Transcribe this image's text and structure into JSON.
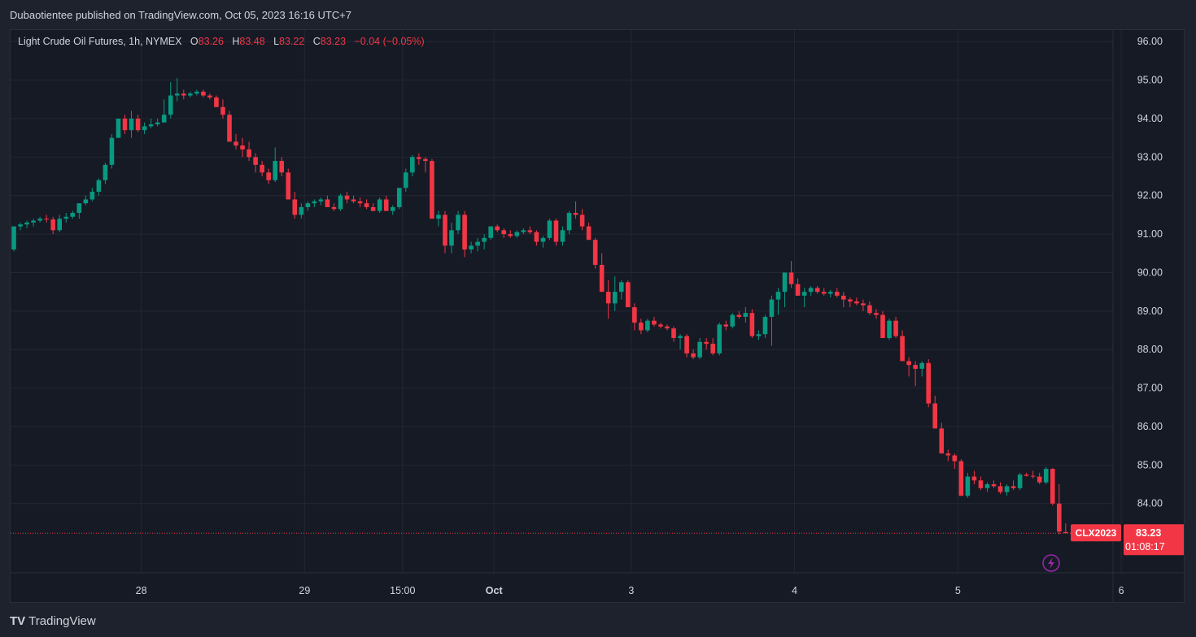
{
  "header": {
    "published": "Dubaotientee published on TradingView.com, Oct 05, 2023 16:16 UTC+7"
  },
  "legend": {
    "symbol": "Light Crude Oil Futures, 1h, NYMEX",
    "o_label": "O",
    "o_value": "83.26",
    "h_label": "H",
    "h_value": "83.48",
    "l_label": "L",
    "l_value": "83.22",
    "c_label": "C",
    "c_value": "83.23",
    "change": "−0.04 (−0.05%)"
  },
  "footer": {
    "logo": "TV",
    "brand": "TradingView"
  },
  "colors": {
    "up": "#089981",
    "down": "#f23645",
    "background": "#161a25",
    "grid": "#232734",
    "axis_text": "#d1d4dc"
  },
  "icons": {
    "flash": "lightning-icon"
  },
  "price_tag": {
    "symbol": "CLX2023",
    "price": "83.23",
    "countdown": "01:08:17"
  },
  "chart_data": {
    "type": "candlestick",
    "title": "Light Crude Oil Futures, 1h, NYMEX",
    "ylim": [
      82.2,
      96.3
    ],
    "y_ticks": [
      "96.00",
      "95.00",
      "94.00",
      "93.00",
      "92.00",
      "91.00",
      "90.00",
      "89.00",
      "88.00",
      "87.00",
      "86.00",
      "85.00",
      "84.00"
    ],
    "x_ticks": [
      {
        "label": "28",
        "index": 19.5
      },
      {
        "label": "29",
        "index": 44.5
      },
      {
        "label": "15:00",
        "index": 59.5
      },
      {
        "label": "Oct",
        "index": 73.5
      },
      {
        "label": "3",
        "index": 94.5
      },
      {
        "label": "4",
        "index": 119.5
      },
      {
        "label": "5",
        "index": 144.5
      },
      {
        "label": "6",
        "index": 169.5
      }
    ],
    "last_price": 83.23,
    "grid": true,
    "candles": [
      [
        90.6,
        91.2,
        90.55,
        91.2
      ],
      [
        91.2,
        91.3,
        91.1,
        91.25
      ],
      [
        91.25,
        91.35,
        91.15,
        91.3
      ],
      [
        91.3,
        91.4,
        91.2,
        91.35
      ],
      [
        91.35,
        91.45,
        91.3,
        91.4
      ],
      [
        91.4,
        91.5,
        91.3,
        91.38
      ],
      [
        91.38,
        91.45,
        91.0,
        91.1
      ],
      [
        91.1,
        91.5,
        91.05,
        91.4
      ],
      [
        91.4,
        91.55,
        91.3,
        91.45
      ],
      [
        91.45,
        91.6,
        91.4,
        91.55
      ],
      [
        91.55,
        91.8,
        91.4,
        91.8
      ],
      [
        91.8,
        92.0,
        91.75,
        91.9
      ],
      [
        91.9,
        92.2,
        91.85,
        92.1
      ],
      [
        92.1,
        92.45,
        92.0,
        92.4
      ],
      [
        92.4,
        92.85,
        92.3,
        92.8
      ],
      [
        92.8,
        93.6,
        92.7,
        93.5
      ],
      [
        93.5,
        94.0,
        93.5,
        94.0
      ],
      [
        94.0,
        94.1,
        93.6,
        93.7
      ],
      [
        93.7,
        94.2,
        93.5,
        94.0
      ],
      [
        94.0,
        94.1,
        93.65,
        93.7
      ],
      [
        93.7,
        93.9,
        93.6,
        93.8
      ],
      [
        93.8,
        94.0,
        93.75,
        93.85
      ],
      [
        93.85,
        94.0,
        93.8,
        93.9
      ],
      [
        93.9,
        94.5,
        93.9,
        94.1
      ],
      [
        94.1,
        94.95,
        94.0,
        94.6
      ],
      [
        94.6,
        95.05,
        94.45,
        94.65
      ],
      [
        94.65,
        94.75,
        94.5,
        94.6
      ],
      [
        94.6,
        94.7,
        94.55,
        94.65
      ],
      [
        94.65,
        94.75,
        94.6,
        94.7
      ],
      [
        94.7,
        94.75,
        94.55,
        94.6
      ],
      [
        94.6,
        94.65,
        94.5,
        94.55
      ],
      [
        94.55,
        94.6,
        94.3,
        94.3
      ],
      [
        94.3,
        94.5,
        94.0,
        94.1
      ],
      [
        94.1,
        94.2,
        93.4,
        93.4
      ],
      [
        93.4,
        93.6,
        93.2,
        93.3
      ],
      [
        93.3,
        93.5,
        93.0,
        93.2
      ],
      [
        93.2,
        93.4,
        92.9,
        93.0
      ],
      [
        93.0,
        93.1,
        92.6,
        92.8
      ],
      [
        92.8,
        92.9,
        92.5,
        92.6
      ],
      [
        92.6,
        92.7,
        92.3,
        92.4
      ],
      [
        92.4,
        93.25,
        92.35,
        92.9
      ],
      [
        92.9,
        93.0,
        92.5,
        92.6
      ],
      [
        92.6,
        92.7,
        91.9,
        91.9
      ],
      [
        91.9,
        92.1,
        91.4,
        91.5
      ],
      [
        91.5,
        91.8,
        91.4,
        91.7
      ],
      [
        91.7,
        91.85,
        91.6,
        91.8
      ],
      [
        91.8,
        91.9,
        91.7,
        91.85
      ],
      [
        91.85,
        91.95,
        91.75,
        91.9
      ],
      [
        91.9,
        92.0,
        91.8,
        91.7
      ],
      [
        91.7,
        91.8,
        91.6,
        91.65
      ],
      [
        91.65,
        92.05,
        91.6,
        92.0
      ],
      [
        92.0,
        92.1,
        91.8,
        91.9
      ],
      [
        91.9,
        92.0,
        91.8,
        91.85
      ],
      [
        91.85,
        91.95,
        91.7,
        91.8
      ],
      [
        91.8,
        91.9,
        91.65,
        91.7
      ],
      [
        91.7,
        91.8,
        91.6,
        91.6
      ],
      [
        91.6,
        91.95,
        91.55,
        91.9
      ],
      [
        91.9,
        92.0,
        91.7,
        91.6
      ],
      [
        91.6,
        91.75,
        91.5,
        91.7
      ],
      [
        91.7,
        92.2,
        91.65,
        92.2
      ],
      [
        92.2,
        92.7,
        92.1,
        92.6
      ],
      [
        92.6,
        93.05,
        92.5,
        93.0
      ],
      [
        93.0,
        93.1,
        92.8,
        92.95
      ],
      [
        92.95,
        93.0,
        92.6,
        92.9
      ],
      [
        92.9,
        92.95,
        91.4,
        91.4
      ],
      [
        91.4,
        91.6,
        91.2,
        91.5
      ],
      [
        91.5,
        91.6,
        90.5,
        90.7
      ],
      [
        90.7,
        91.3,
        90.5,
        91.1
      ],
      [
        91.1,
        91.6,
        91.0,
        91.5
      ],
      [
        91.5,
        91.6,
        90.4,
        90.6
      ],
      [
        90.6,
        90.8,
        90.5,
        90.7
      ],
      [
        90.7,
        90.9,
        90.55,
        90.8
      ],
      [
        90.8,
        91.0,
        90.6,
        90.9
      ],
      [
        90.9,
        91.2,
        90.85,
        91.2
      ],
      [
        91.2,
        91.25,
        91.05,
        91.1
      ],
      [
        91.1,
        91.15,
        90.9,
        91.0
      ],
      [
        91.0,
        91.1,
        90.9,
        90.95
      ],
      [
        90.95,
        91.1,
        90.9,
        91.05
      ],
      [
        91.05,
        91.15,
        91.0,
        91.1
      ],
      [
        91.1,
        91.2,
        91.0,
        91.05
      ],
      [
        91.05,
        91.1,
        90.7,
        90.8
      ],
      [
        90.8,
        90.95,
        90.65,
        90.9
      ],
      [
        90.9,
        91.4,
        90.85,
        91.35
      ],
      [
        91.35,
        91.4,
        90.7,
        90.8
      ],
      [
        90.8,
        91.2,
        90.7,
        91.1
      ],
      [
        91.1,
        91.6,
        91.0,
        91.55
      ],
      [
        91.55,
        91.85,
        91.4,
        91.5
      ],
      [
        91.5,
        91.65,
        91.1,
        91.2
      ],
      [
        91.2,
        91.3,
        90.85,
        90.85
      ],
      [
        90.85,
        90.9,
        90.1,
        90.2
      ],
      [
        90.2,
        90.5,
        89.5,
        89.5
      ],
      [
        89.5,
        89.8,
        88.8,
        89.2
      ],
      [
        89.2,
        89.9,
        89.0,
        89.5
      ],
      [
        89.5,
        89.8,
        89.3,
        89.75
      ],
      [
        89.75,
        89.8,
        89.1,
        89.1
      ],
      [
        89.1,
        89.2,
        88.5,
        88.7
      ],
      [
        88.7,
        88.8,
        88.4,
        88.5
      ],
      [
        88.5,
        88.8,
        88.45,
        88.75
      ],
      [
        88.75,
        88.85,
        88.6,
        88.65
      ],
      [
        88.65,
        88.7,
        88.55,
        88.6
      ],
      [
        88.6,
        88.65,
        88.5,
        88.55
      ],
      [
        88.55,
        88.6,
        88.2,
        88.3
      ],
      [
        88.3,
        88.4,
        88.0,
        88.35
      ],
      [
        88.35,
        88.4,
        87.8,
        87.9
      ],
      [
        87.9,
        88.0,
        87.75,
        87.8
      ],
      [
        87.8,
        88.3,
        87.75,
        88.2
      ],
      [
        88.2,
        88.3,
        88.0,
        88.15
      ],
      [
        88.15,
        88.3,
        87.85,
        87.9
      ],
      [
        87.9,
        88.7,
        87.85,
        88.65
      ],
      [
        88.65,
        88.75,
        88.5,
        88.6
      ],
      [
        88.6,
        88.95,
        88.55,
        88.9
      ],
      [
        88.9,
        89.0,
        88.8,
        88.85
      ],
      [
        88.85,
        89.1,
        88.7,
        88.95
      ],
      [
        88.95,
        89.05,
        88.3,
        88.35
      ],
      [
        88.35,
        88.5,
        88.25,
        88.4
      ],
      [
        88.4,
        88.9,
        88.3,
        88.85
      ],
      [
        88.85,
        89.4,
        88.1,
        89.3
      ],
      [
        89.3,
        89.6,
        88.9,
        89.5
      ],
      [
        89.5,
        90.0,
        89.1,
        90.0
      ],
      [
        90.0,
        90.3,
        89.6,
        89.7
      ],
      [
        89.7,
        89.85,
        89.4,
        89.4
      ],
      [
        89.4,
        89.6,
        89.1,
        89.5
      ],
      [
        89.5,
        89.65,
        89.4,
        89.6
      ],
      [
        89.6,
        89.65,
        89.45,
        89.5
      ],
      [
        89.5,
        89.6,
        89.4,
        89.45
      ],
      [
        89.45,
        89.55,
        89.35,
        89.5
      ],
      [
        89.5,
        89.6,
        89.35,
        89.4
      ],
      [
        89.4,
        89.5,
        89.1,
        89.3
      ],
      [
        89.3,
        89.35,
        89.1,
        89.25
      ],
      [
        89.25,
        89.35,
        89.15,
        89.2
      ],
      [
        89.2,
        89.3,
        89.0,
        89.15
      ],
      [
        89.15,
        89.25,
        88.9,
        88.95
      ],
      [
        88.95,
        89.05,
        88.8,
        88.9
      ],
      [
        88.9,
        89.0,
        88.3,
        88.3
      ],
      [
        88.3,
        88.8,
        88.25,
        88.75
      ],
      [
        88.75,
        88.85,
        88.3,
        88.35
      ],
      [
        88.35,
        88.5,
        87.7,
        87.7
      ],
      [
        87.7,
        87.8,
        87.3,
        87.6
      ],
      [
        87.6,
        87.7,
        87.05,
        87.5
      ],
      [
        87.5,
        87.7,
        87.3,
        87.65
      ],
      [
        87.65,
        87.75,
        86.5,
        86.6
      ],
      [
        86.6,
        86.8,
        85.95,
        85.95
      ],
      [
        85.95,
        86.1,
        85.3,
        85.3
      ],
      [
        85.3,
        85.4,
        85.1,
        85.25
      ],
      [
        85.25,
        85.3,
        84.9,
        85.1
      ],
      [
        85.1,
        85.15,
        84.2,
        84.2
      ],
      [
        84.2,
        84.8,
        84.15,
        84.7
      ],
      [
        84.7,
        84.85,
        84.5,
        84.6
      ],
      [
        84.6,
        84.7,
        84.35,
        84.4
      ],
      [
        84.4,
        84.55,
        84.3,
        84.5
      ],
      [
        84.5,
        84.6,
        84.4,
        84.45
      ],
      [
        84.45,
        84.55,
        84.25,
        84.3
      ],
      [
        84.3,
        84.5,
        84.2,
        84.45
      ],
      [
        84.45,
        84.6,
        84.35,
        84.4
      ],
      [
        84.4,
        84.8,
        84.35,
        84.75
      ],
      [
        84.75,
        84.8,
        84.7,
        84.72
      ],
      [
        84.72,
        84.85,
        84.65,
        84.7
      ],
      [
        84.7,
        84.8,
        84.5,
        84.55
      ],
      [
        84.55,
        84.95,
        84.5,
        84.9
      ],
      [
        84.9,
        84.92,
        83.95,
        84.0
      ],
      [
        84.0,
        84.5,
        83.2,
        83.27
      ],
      [
        83.26,
        83.48,
        83.22,
        83.23
      ]
    ]
  }
}
